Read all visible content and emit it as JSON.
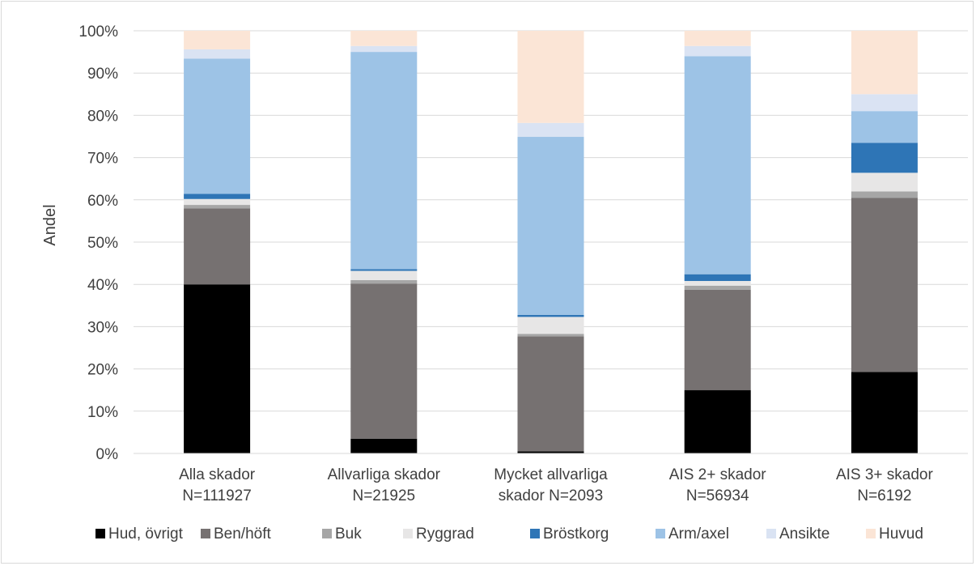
{
  "chart_data": {
    "type": "bar",
    "stacked": true,
    "percent": true,
    "ylabel": "Andel",
    "xlabel": "",
    "ylim": [
      0,
      100
    ],
    "ytick_labels": [
      "0%",
      "10%",
      "20%",
      "30%",
      "40%",
      "50%",
      "60%",
      "70%",
      "80%",
      "90%",
      "100%"
    ],
    "grid": true,
    "legend_position": "bottom",
    "categories": [
      [
        "Alla skador",
        "N=111927"
      ],
      [
        "Allvarliga skador",
        "N=21925"
      ],
      [
        "Mycket allvarliga",
        "skador N=2093"
      ],
      [
        "AIS 2+ skador",
        "N=56934"
      ],
      [
        "AIS 3+ skador",
        "N=6192"
      ]
    ],
    "series": [
      {
        "name": "Hud, övrigt",
        "color": "#000000",
        "values": [
          40,
          3.5,
          0.5,
          15,
          19.3
        ]
      },
      {
        "name": "Ben/höft",
        "color": "#767171",
        "values": [
          18,
          36.7,
          27.2,
          23.7,
          41.2
        ]
      },
      {
        "name": "Buk",
        "color": "#a6a6a6",
        "values": [
          0.8,
          0.8,
          0.6,
          1.0,
          1.5
        ]
      },
      {
        "name": "Ryggrad",
        "color": "#e7e6e6",
        "values": [
          1.4,
          2.2,
          4.0,
          1.1,
          4.4
        ]
      },
      {
        "name": "Bröstkorg",
        "color": "#2e75b6",
        "values": [
          1.2,
          0.4,
          0.5,
          1.6,
          7.1
        ]
      },
      {
        "name": "Arm/axel",
        "color": "#9dc3e6",
        "values": [
          32,
          51.4,
          42.1,
          51.6,
          7.5
        ]
      },
      {
        "name": "Ansikte",
        "color": "#dae3f3",
        "values": [
          2.2,
          1.4,
          3.3,
          2.4,
          4.0
        ]
      },
      {
        "name": "Huvud",
        "color": "#fbe5d6",
        "values": [
          4.4,
          3.6,
          21.8,
          3.6,
          15.0
        ]
      }
    ]
  }
}
